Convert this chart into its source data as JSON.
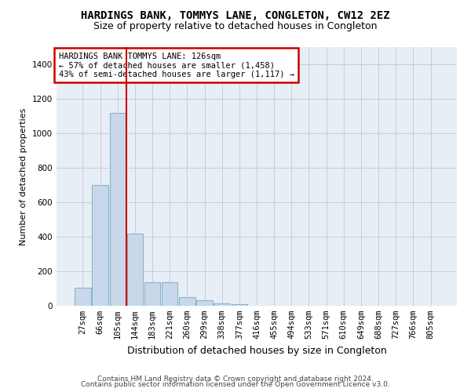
{
  "title": "HARDINGS BANK, TOMMYS LANE, CONGLETON, CW12 2EZ",
  "subtitle": "Size of property relative to detached houses in Congleton",
  "xlabel": "Distribution of detached houses by size in Congleton",
  "ylabel": "Number of detached properties",
  "bar_color": "#c8d8ea",
  "bar_edge_color": "#8ab4cc",
  "background_color": "#e8eef5",
  "grid_color": "#c5cdd8",
  "bins": [
    "27sqm",
    "66sqm",
    "105sqm",
    "144sqm",
    "183sqm",
    "221sqm",
    "260sqm",
    "299sqm",
    "338sqm",
    "377sqm",
    "416sqm",
    "455sqm",
    "494sqm",
    "533sqm",
    "571sqm",
    "610sqm",
    "649sqm",
    "688sqm",
    "727sqm",
    "766sqm",
    "805sqm"
  ],
  "values": [
    105,
    700,
    1120,
    420,
    135,
    135,
    50,
    30,
    15,
    10,
    0,
    0,
    0,
    0,
    0,
    0,
    0,
    0,
    0,
    0,
    0
  ],
  "ylim": [
    0,
    1500
  ],
  "yticks": [
    0,
    200,
    400,
    600,
    800,
    1000,
    1200,
    1400
  ],
  "property_line_x": 2.5,
  "annotation_text": "HARDINGS BANK TOMMYS LANE: 126sqm\n← 57% of detached houses are smaller (1,458)\n43% of semi-detached houses are larger (1,117) →",
  "footer_line1": "Contains HM Land Registry data © Crown copyright and database right 2024.",
  "footer_line2": "Contains public sector information licensed under the Open Government Licence v3.0.",
  "annotation_box_facecolor": "#ffffff",
  "annotation_border_color": "#cc0000",
  "vline_color": "#cc0000",
  "title_fontsize": 10,
  "subtitle_fontsize": 9,
  "ylabel_fontsize": 8,
  "xlabel_fontsize": 9,
  "tick_fontsize": 7.5,
  "footer_fontsize": 6.5
}
